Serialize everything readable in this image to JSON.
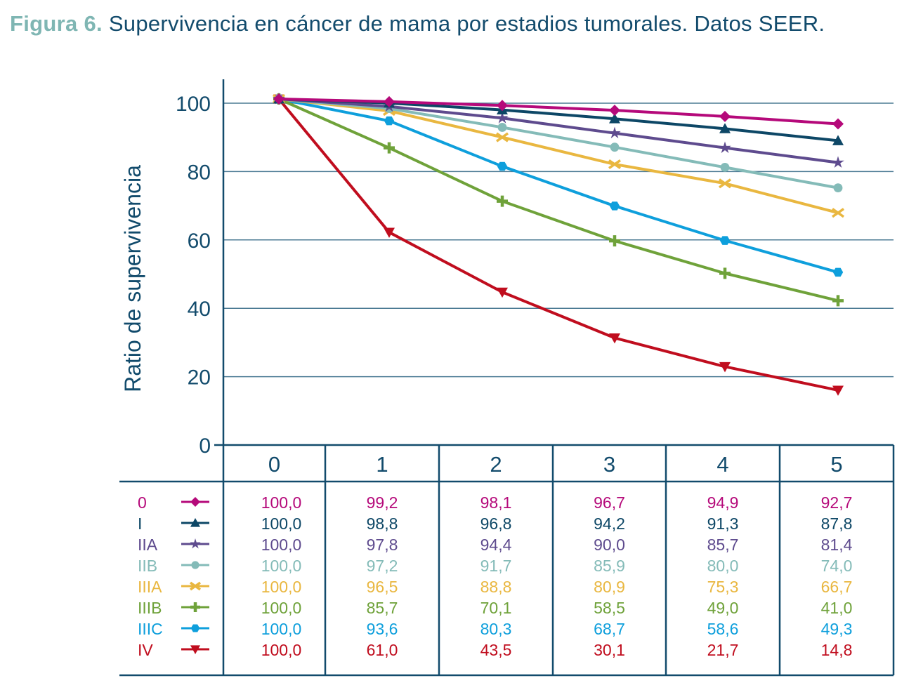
{
  "title": {
    "figure_label": "Figura 6.",
    "text": " Supervivencia en cáncer de mama por estadios tumorales. Datos SEER."
  },
  "chart_data": {
    "type": "line",
    "title": "Figura 6. Supervivencia en cáncer de mama por estadios tumorales. Datos SEER.",
    "xlabel": "",
    "ylabel": "Ratio de supervivencia",
    "x": [
      0,
      1,
      2,
      3,
      4,
      5
    ],
    "x_tick_labels": [
      "0",
      "1",
      "2",
      "3",
      "4",
      "5"
    ],
    "y_ticks": [
      0,
      20,
      40,
      60,
      80,
      100
    ],
    "ylim": [
      0,
      100
    ],
    "grid": "horizontal",
    "legend_position": "data-table-below",
    "series": [
      {
        "name": "0",
        "marker": "diamond",
        "color": "#b5097a",
        "values": [
          100.0,
          99.2,
          98.1,
          96.7,
          94.9,
          92.7
        ],
        "labels": [
          "100,0",
          "99,2",
          "98,1",
          "96,7",
          "94,9",
          "92,7"
        ]
      },
      {
        "name": "I",
        "marker": "triangle-up",
        "color": "#0d4766",
        "values": [
          100.0,
          98.8,
          96.8,
          94.2,
          91.3,
          87.8
        ],
        "labels": [
          "100,0",
          "98,8",
          "96,8",
          "94,2",
          "91,3",
          "87,8"
        ]
      },
      {
        "name": "IIA",
        "marker": "star",
        "color": "#5e4b8e",
        "values": [
          100.0,
          97.8,
          94.4,
          90.0,
          85.7,
          81.4
        ],
        "labels": [
          "100,0",
          "97,8",
          "94,4",
          "90,0",
          "85,7",
          "81,4"
        ]
      },
      {
        "name": "IIB",
        "marker": "circle",
        "color": "#84bbb8",
        "values": [
          100.0,
          97.2,
          91.7,
          85.9,
          80.0,
          74.0
        ],
        "labels": [
          "100,0",
          "97,2",
          "91,7",
          "85,9",
          "80,0",
          "74,0"
        ]
      },
      {
        "name": "IIIA",
        "marker": "x",
        "color": "#e9b740",
        "values": [
          100.0,
          96.5,
          88.8,
          80.9,
          75.3,
          66.7
        ],
        "labels": [
          "100,0",
          "96,5",
          "88,8",
          "80,9",
          "75,3",
          "66,7"
        ]
      },
      {
        "name": "IIIB",
        "marker": "plus",
        "color": "#6fa23a",
        "values": [
          100.0,
          85.7,
          70.1,
          58.5,
          49.0,
          41.0
        ],
        "labels": [
          "100,0",
          "85,7",
          "70,1",
          "58,5",
          "49,0",
          "41,0"
        ]
      },
      {
        "name": "IIIC",
        "marker": "hexagon",
        "color": "#0e9fdc",
        "values": [
          100.0,
          93.6,
          80.3,
          68.7,
          58.6,
          49.3
        ],
        "labels": [
          "100,0",
          "93,6",
          "80,3",
          "68,7",
          "58,6",
          "49,3"
        ]
      },
      {
        "name": "IV",
        "marker": "triangle-down",
        "color": "#c00d1e",
        "values": [
          100.0,
          61.0,
          43.5,
          30.1,
          21.7,
          14.8
        ],
        "labels": [
          "100,0",
          "61,0",
          "43,5",
          "30,1",
          "21,7",
          "14,8"
        ]
      }
    ]
  },
  "colors": {
    "axis": "#124b6c",
    "grid": "#4c7b94",
    "title_accent": "#7fb6b3"
  }
}
